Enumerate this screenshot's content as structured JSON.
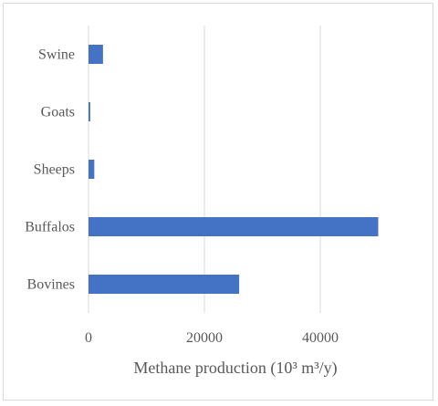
{
  "chart_data": {
    "type": "bar",
    "orientation": "horizontal",
    "categories": [
      "Swine",
      "Goats",
      "Sheeps",
      "Buffalos",
      "Bovines"
    ],
    "values": [
      2500,
      300,
      1000,
      50000,
      26000
    ],
    "xlabel": "Methane production (10³ m³/y)",
    "ylabel": "",
    "xlim": [
      0,
      60000
    ],
    "xticks": [
      "0",
      "20000",
      "40000"
    ],
    "grid": "vertical",
    "bar_color": "#4472c4",
    "gridline_color": "#d9d9d9"
  }
}
